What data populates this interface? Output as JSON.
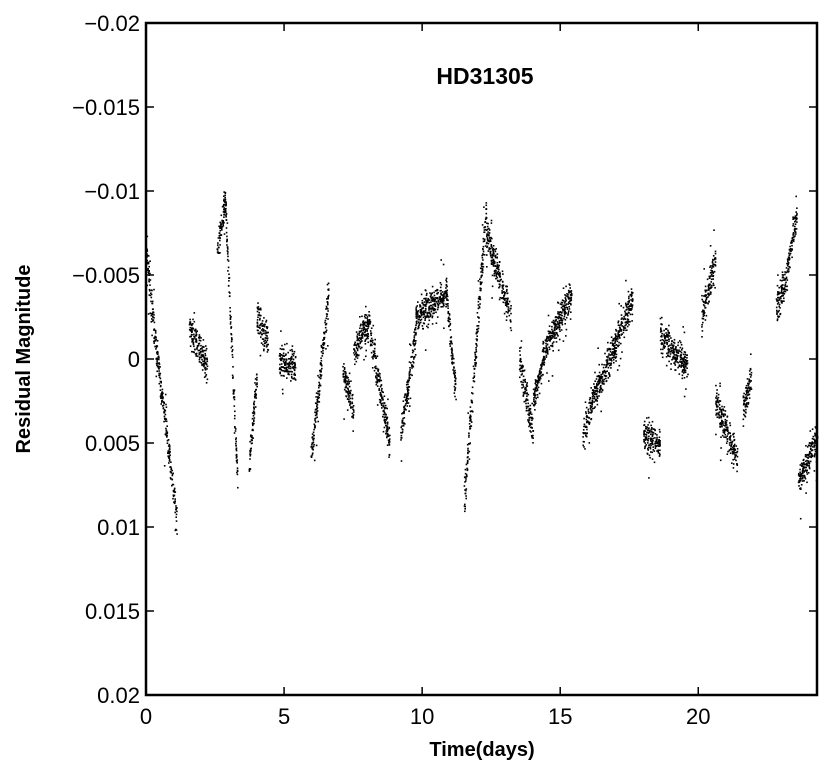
{
  "chart_data": {
    "type": "scatter",
    "title": "HD31305",
    "xlabel": "Time(days)",
    "ylabel": "Residual Magnitude",
    "xlim": [
      0,
      24.3
    ],
    "ylim": [
      0.02,
      -0.02
    ],
    "y_axis_inverted": true,
    "grid": false,
    "legend": "none",
    "marker_color": "#000000",
    "x_ticks": [
      0,
      5,
      10,
      15,
      20
    ],
    "x_tick_labels": [
      "0",
      "5",
      "10",
      "15",
      "20"
    ],
    "y_ticks": [
      -0.02,
      -0.015,
      -0.01,
      -0.005,
      0,
      0.005,
      0.01,
      0.015,
      0.02
    ],
    "y_tick_labels": [
      "−0.02",
      "−0.015",
      "−0.01",
      "−0.005",
      "0",
      "0.005",
      "0.01",
      "0.015",
      "0.02"
    ],
    "segments": [
      {
        "t0": 0.0,
        "t1": 0.25,
        "m0": -0.0065,
        "m1": -0.002
      },
      {
        "t0": 0.25,
        "t1": 1.1,
        "m0": -0.002,
        "m1": 0.0095
      },
      {
        "t0": 1.55,
        "t1": 2.2,
        "m0": -0.002,
        "m1": 0.0005
      },
      {
        "t0": 2.55,
        "t1": 2.85,
        "m0": -0.0065,
        "m1": -0.0095
      },
      {
        "t0": 2.85,
        "t1": 3.3,
        "m0": -0.0095,
        "m1": 0.0075
      },
      {
        "t0": 3.7,
        "t1": 4.0,
        "m0": 0.0065,
        "m1": 0.001
      },
      {
        "t0": 4.0,
        "t1": 4.4,
        "m0": -0.0025,
        "m1": -0.001
      },
      {
        "t0": 4.8,
        "t1": 5.4,
        "m0": 0.0,
        "m1": 0.0005
      },
      {
        "t0": 5.95,
        "t1": 6.6,
        "m0": 0.006,
        "m1": -0.004
      },
      {
        "t0": 7.1,
        "t1": 7.5,
        "m0": 0.001,
        "m1": 0.003
      },
      {
        "t0": 7.5,
        "t1": 8.1,
        "m0": -0.0005,
        "m1": -0.0025
      },
      {
        "t0": 8.1,
        "t1": 8.8,
        "m0": -0.0015,
        "m1": 0.005
      },
      {
        "t0": 9.2,
        "t1": 9.75,
        "m0": 0.0045,
        "m1": -0.0015
      },
      {
        "t0": 9.75,
        "t1": 10.9,
        "m0": -0.0025,
        "m1": -0.004
      },
      {
        "t0": 10.9,
        "t1": 11.2,
        "m0": -0.003,
        "m1": 0.002
      },
      {
        "t0": 11.5,
        "t1": 12.3,
        "m0": 0.0085,
        "m1": -0.009
      },
      {
        "t0": 12.3,
        "t1": 13.2,
        "m0": -0.0075,
        "m1": -0.0025
      },
      {
        "t0": 13.5,
        "t1": 14.0,
        "m0": 0.0,
        "m1": 0.0045
      },
      {
        "t0": 14.0,
        "t1": 14.6,
        "m0": 0.0025,
        "m1": -0.0015
      },
      {
        "t0": 14.6,
        "t1": 15.4,
        "m0": -0.001,
        "m1": -0.004
      },
      {
        "t0": 15.8,
        "t1": 16.4,
        "m0": 0.0045,
        "m1": 0.001
      },
      {
        "t0": 16.4,
        "t1": 17.6,
        "m0": 0.0015,
        "m1": -0.0035
      },
      {
        "t0": 18.0,
        "t1": 18.6,
        "m0": 0.0045,
        "m1": 0.005
      },
      {
        "t0": 18.6,
        "t1": 19.6,
        "m0": -0.0015,
        "m1": 0.0005
      },
      {
        "t0": 20.1,
        "t1": 20.6,
        "m0": -0.0025,
        "m1": -0.006
      },
      {
        "t0": 20.6,
        "t1": 21.4,
        "m0": 0.0025,
        "m1": 0.006
      },
      {
        "t0": 21.6,
        "t1": 21.9,
        "m0": 0.003,
        "m1": 0.001
      },
      {
        "t0": 22.8,
        "t1": 23.2,
        "m0": -0.003,
        "m1": -0.005
      },
      {
        "t0": 23.2,
        "t1": 23.55,
        "m0": -0.0055,
        "m1": -0.0085
      },
      {
        "t0": 23.6,
        "t1": 24.3,
        "m0": 0.0075,
        "m1": 0.0045
      }
    ]
  }
}
